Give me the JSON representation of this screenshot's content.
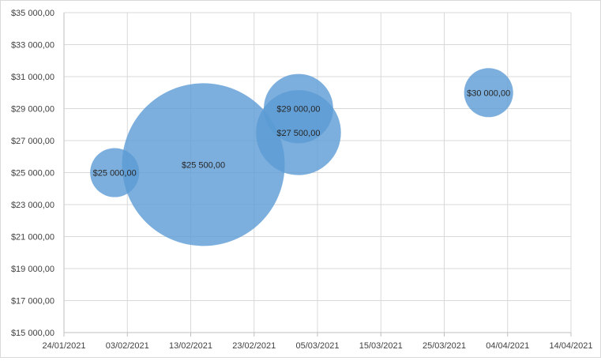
{
  "chart_data": {
    "type": "bubble",
    "title": "",
    "xlabel": "",
    "ylabel": "",
    "grid": true,
    "legend": "none",
    "xlim": [
      "2021-01-24",
      "2021-04-14"
    ],
    "ylim": [
      15000,
      35000
    ],
    "x_ticks": [
      "24/01/2021",
      "03/02/2021",
      "13/02/2021",
      "23/02/2021",
      "05/03/2021",
      "15/03/2021",
      "25/03/2021",
      "04/04/2021",
      "14/04/2021"
    ],
    "y_ticks": [
      "$15 000,00",
      "$17 000,00",
      "$19 000,00",
      "$21 000,00",
      "$23 000,00",
      "$25 000,00",
      "$27 000,00",
      "$29 000,00",
      "$31 000,00",
      "$33 000,00",
      "$35 000,00"
    ],
    "bubble_color": "#5b9bd5",
    "points": [
      {
        "x": "2021-02-01",
        "y": 25000,
        "size": 1,
        "label": "$25 000,00"
      },
      {
        "x": "2021-02-15",
        "y": 25500,
        "size": 11,
        "label": "$25 500,00"
      },
      {
        "x": "2021-03-02",
        "y": 29000,
        "size": 2,
        "label": "$29 000,00"
      },
      {
        "x": "2021-03-02",
        "y": 27500,
        "size": 3,
        "label": "$27 500,00"
      },
      {
        "x": "2021-04-01",
        "y": 30000,
        "size": 1,
        "label": "$30 000,00"
      }
    ]
  }
}
